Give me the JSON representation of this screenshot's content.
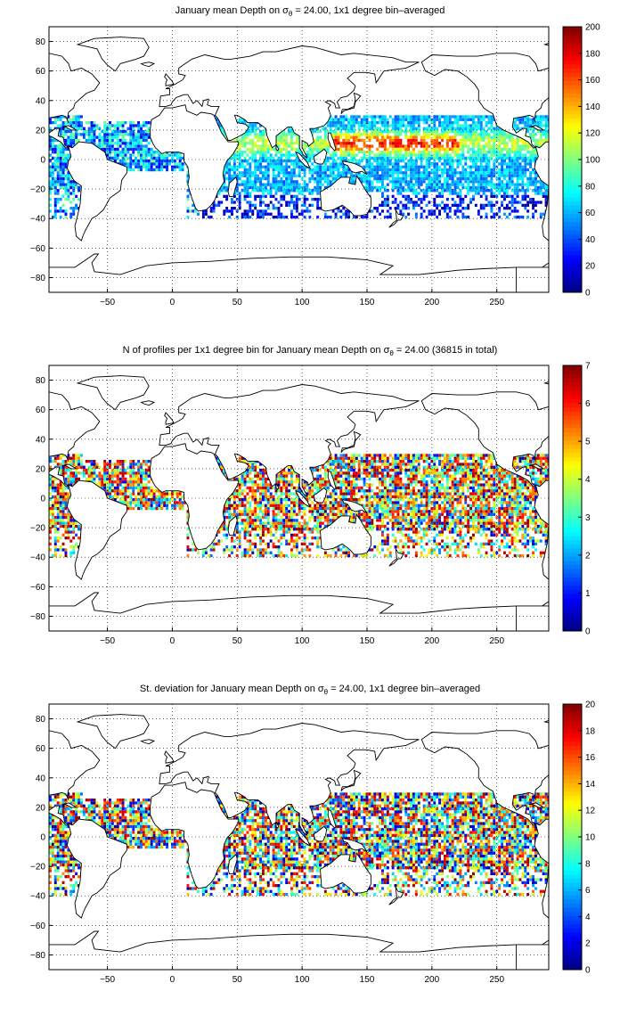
{
  "panels": [
    {
      "title_pre": "January mean Depth on σ",
      "title_sub": "θ",
      "title_post": " = 24.00, 1x1 degree bin–averaged",
      "colorbar": {
        "min": 0,
        "max": 200,
        "ticks": [
          0,
          20,
          40,
          60,
          80,
          100,
          120,
          140,
          160,
          180,
          200
        ]
      },
      "field": "depth"
    },
    {
      "title_pre": "N of profiles per 1x1 degree bin for January mean Depth on σ",
      "title_sub": "θ",
      "title_post": " = 24.00 (36815 in total)",
      "colorbar": {
        "min": 0,
        "max": 7,
        "ticks": [
          0,
          1,
          2,
          3,
          4,
          5,
          6,
          7
        ]
      },
      "field": "count"
    },
    {
      "title_pre": "St. deviation for January mean Depth on σ",
      "title_sub": "θ",
      "title_post": " = 24.00, 1x1 degree bin–averaged",
      "colorbar": {
        "min": 0,
        "max": 20,
        "ticks": [
          0,
          2,
          4,
          6,
          8,
          10,
          12,
          14,
          16,
          18,
          20
        ]
      },
      "field": "std"
    }
  ],
  "axes": {
    "x_ticks": [
      -50,
      0,
      50,
      100,
      150,
      200,
      250
    ],
    "y_ticks": [
      -80,
      -60,
      -40,
      -20,
      0,
      20,
      40,
      60,
      80
    ],
    "xlim": [
      -95,
      290
    ],
    "ylim": [
      -90,
      90
    ],
    "grid": "dotted"
  },
  "colormap": "jet"
}
